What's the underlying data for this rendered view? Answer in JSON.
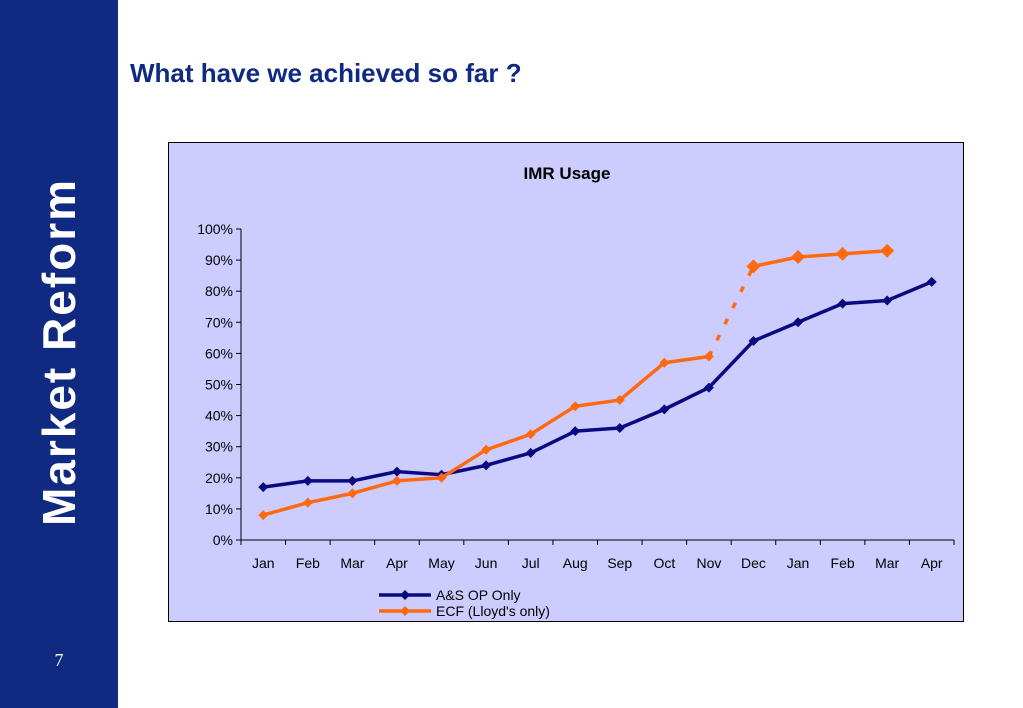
{
  "sidebar": {
    "title": "Market Reform",
    "page_number": "7"
  },
  "page": {
    "title": "What have we achieved so far ?"
  },
  "colors": {
    "sidebar": "#0f2a80",
    "title": "#0f2a80",
    "plot_background": "#ccccff"
  },
  "chart_data": {
    "type": "line",
    "title": "IMR Usage",
    "xlabel": "",
    "ylabel": "",
    "categories": [
      "Jan",
      "Feb",
      "Mar",
      "Apr",
      "May",
      "Jun",
      "Jul",
      "Aug",
      "Sep",
      "Oct",
      "Nov",
      "Dec",
      "Jan",
      "Feb",
      "Mar",
      "Apr"
    ],
    "ylim": [
      0,
      100
    ],
    "y_ticks": [
      "0%",
      "10%",
      "20%",
      "30%",
      "40%",
      "50%",
      "60%",
      "70%",
      "80%",
      "90%",
      "100%"
    ],
    "grid": false,
    "legend_position": "bottom",
    "series": [
      {
        "name": "A&S OP Only",
        "color": "#0a0a80",
        "marker": "diamond",
        "values": [
          17,
          19,
          19,
          22,
          21,
          24,
          28,
          35,
          36,
          42,
          49,
          64,
          70,
          76,
          77,
          83
        ]
      },
      {
        "name": "ECF (Lloyd's only)",
        "color": "#ff6a10",
        "marker": "diamond",
        "values": [
          8,
          12,
          15,
          19,
          20,
          29,
          34,
          43,
          45,
          57,
          59,
          88,
          91,
          92,
          93,
          null
        ],
        "dashed_gap_between": [
          "Nov",
          "Dec"
        ]
      }
    ]
  }
}
